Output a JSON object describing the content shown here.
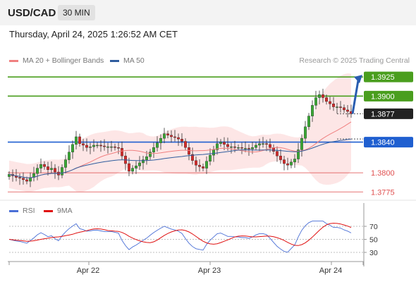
{
  "header": {
    "symbol": "USD/CAD",
    "timeframe": "30 MIN"
  },
  "datetime": "Thursday, April 24, 2025 1:26:52 AM CET",
  "legend": {
    "ma20_label": "MA 20 + Bollinger Bands",
    "ma20_color": "#f08080",
    "ma50_label": "MA 50",
    "ma50_color": "#2f5d9e"
  },
  "copyright": "Research © 2025 Trading Central",
  "rsi_legend": {
    "rsi_label": "RSI",
    "rsi_color": "#4a6fd6",
    "ma9_label": "9MA",
    "ma9_color": "#e01010"
  },
  "price_levels": [
    {
      "value": "1.3925",
      "kind": "resistance",
      "color": "#4a9e1e"
    },
    {
      "value": "1.3900",
      "kind": "resistance",
      "color": "#4a9e1e"
    },
    {
      "value": "1.3877",
      "kind": "last-price",
      "color": "#222222"
    },
    {
      "value": "1.3840",
      "kind": "pivot",
      "color": "#1f5fd0"
    },
    {
      "value": "1.3800",
      "kind": "support",
      "color": "#e05050"
    },
    {
      "value": "1.3775",
      "kind": "support",
      "color": "#e05050"
    }
  ],
  "x_axis_labels": [
    "Apr 22",
    "Apr 23",
    "Apr 24"
  ],
  "rsi_axis_labels": [
    "70",
    "50",
    "30"
  ],
  "chart_data": {
    "type": "candlestick",
    "series": [
      {
        "name": "MA 20 + Bollinger Bands"
      },
      {
        "name": "MA 50"
      },
      {
        "name": "RSI"
      },
      {
        "name": "9MA"
      }
    ],
    "closes": [
      1.3798,
      1.3796,
      1.3794,
      1.3793,
      1.3791,
      1.3789,
      1.3794,
      1.3799,
      1.3806,
      1.3811,
      1.3808,
      1.3804,
      1.3806,
      1.3801,
      1.3797,
      1.3807,
      1.3817,
      1.3827,
      1.3837,
      1.3847,
      1.3838,
      1.3836,
      1.3833,
      1.3834,
      1.3836,
      1.3836,
      1.3835,
      1.3834,
      1.3834,
      1.3834,
      1.3833,
      1.3832,
      1.3822,
      1.3812,
      1.3802,
      1.3806,
      1.3809,
      1.3813,
      1.3817,
      1.3821,
      1.3827,
      1.3833,
      1.3839,
      1.3845,
      1.3851,
      1.3849,
      1.3847,
      1.3846,
      1.3844,
      1.3841,
      1.3833,
      1.3824,
      1.3816,
      1.381,
      1.3808,
      1.3806,
      1.3815,
      1.3823,
      1.383,
      1.3838,
      1.384,
      1.3837,
      1.3834,
      1.3834,
      1.3833,
      1.3833,
      1.3832,
      1.3832,
      1.3831,
      1.3833,
      1.3836,
      1.3838,
      1.3838,
      1.3837,
      1.3833,
      1.3828,
      1.3822,
      1.3817,
      1.3812,
      1.381,
      1.3814,
      1.3818,
      1.383,
      1.3845,
      1.386,
      1.3874,
      1.3888,
      1.3898,
      1.3902,
      1.3898,
      1.3893,
      1.389,
      1.3886,
      1.3886,
      1.3885,
      1.3882,
      1.388,
      1.3877
    ],
    "last_close": 1.3877,
    "projection": {
      "from": 1.3877,
      "to": 1.3925
    },
    "ylim": [
      1.3767,
      1.3938
    ]
  }
}
